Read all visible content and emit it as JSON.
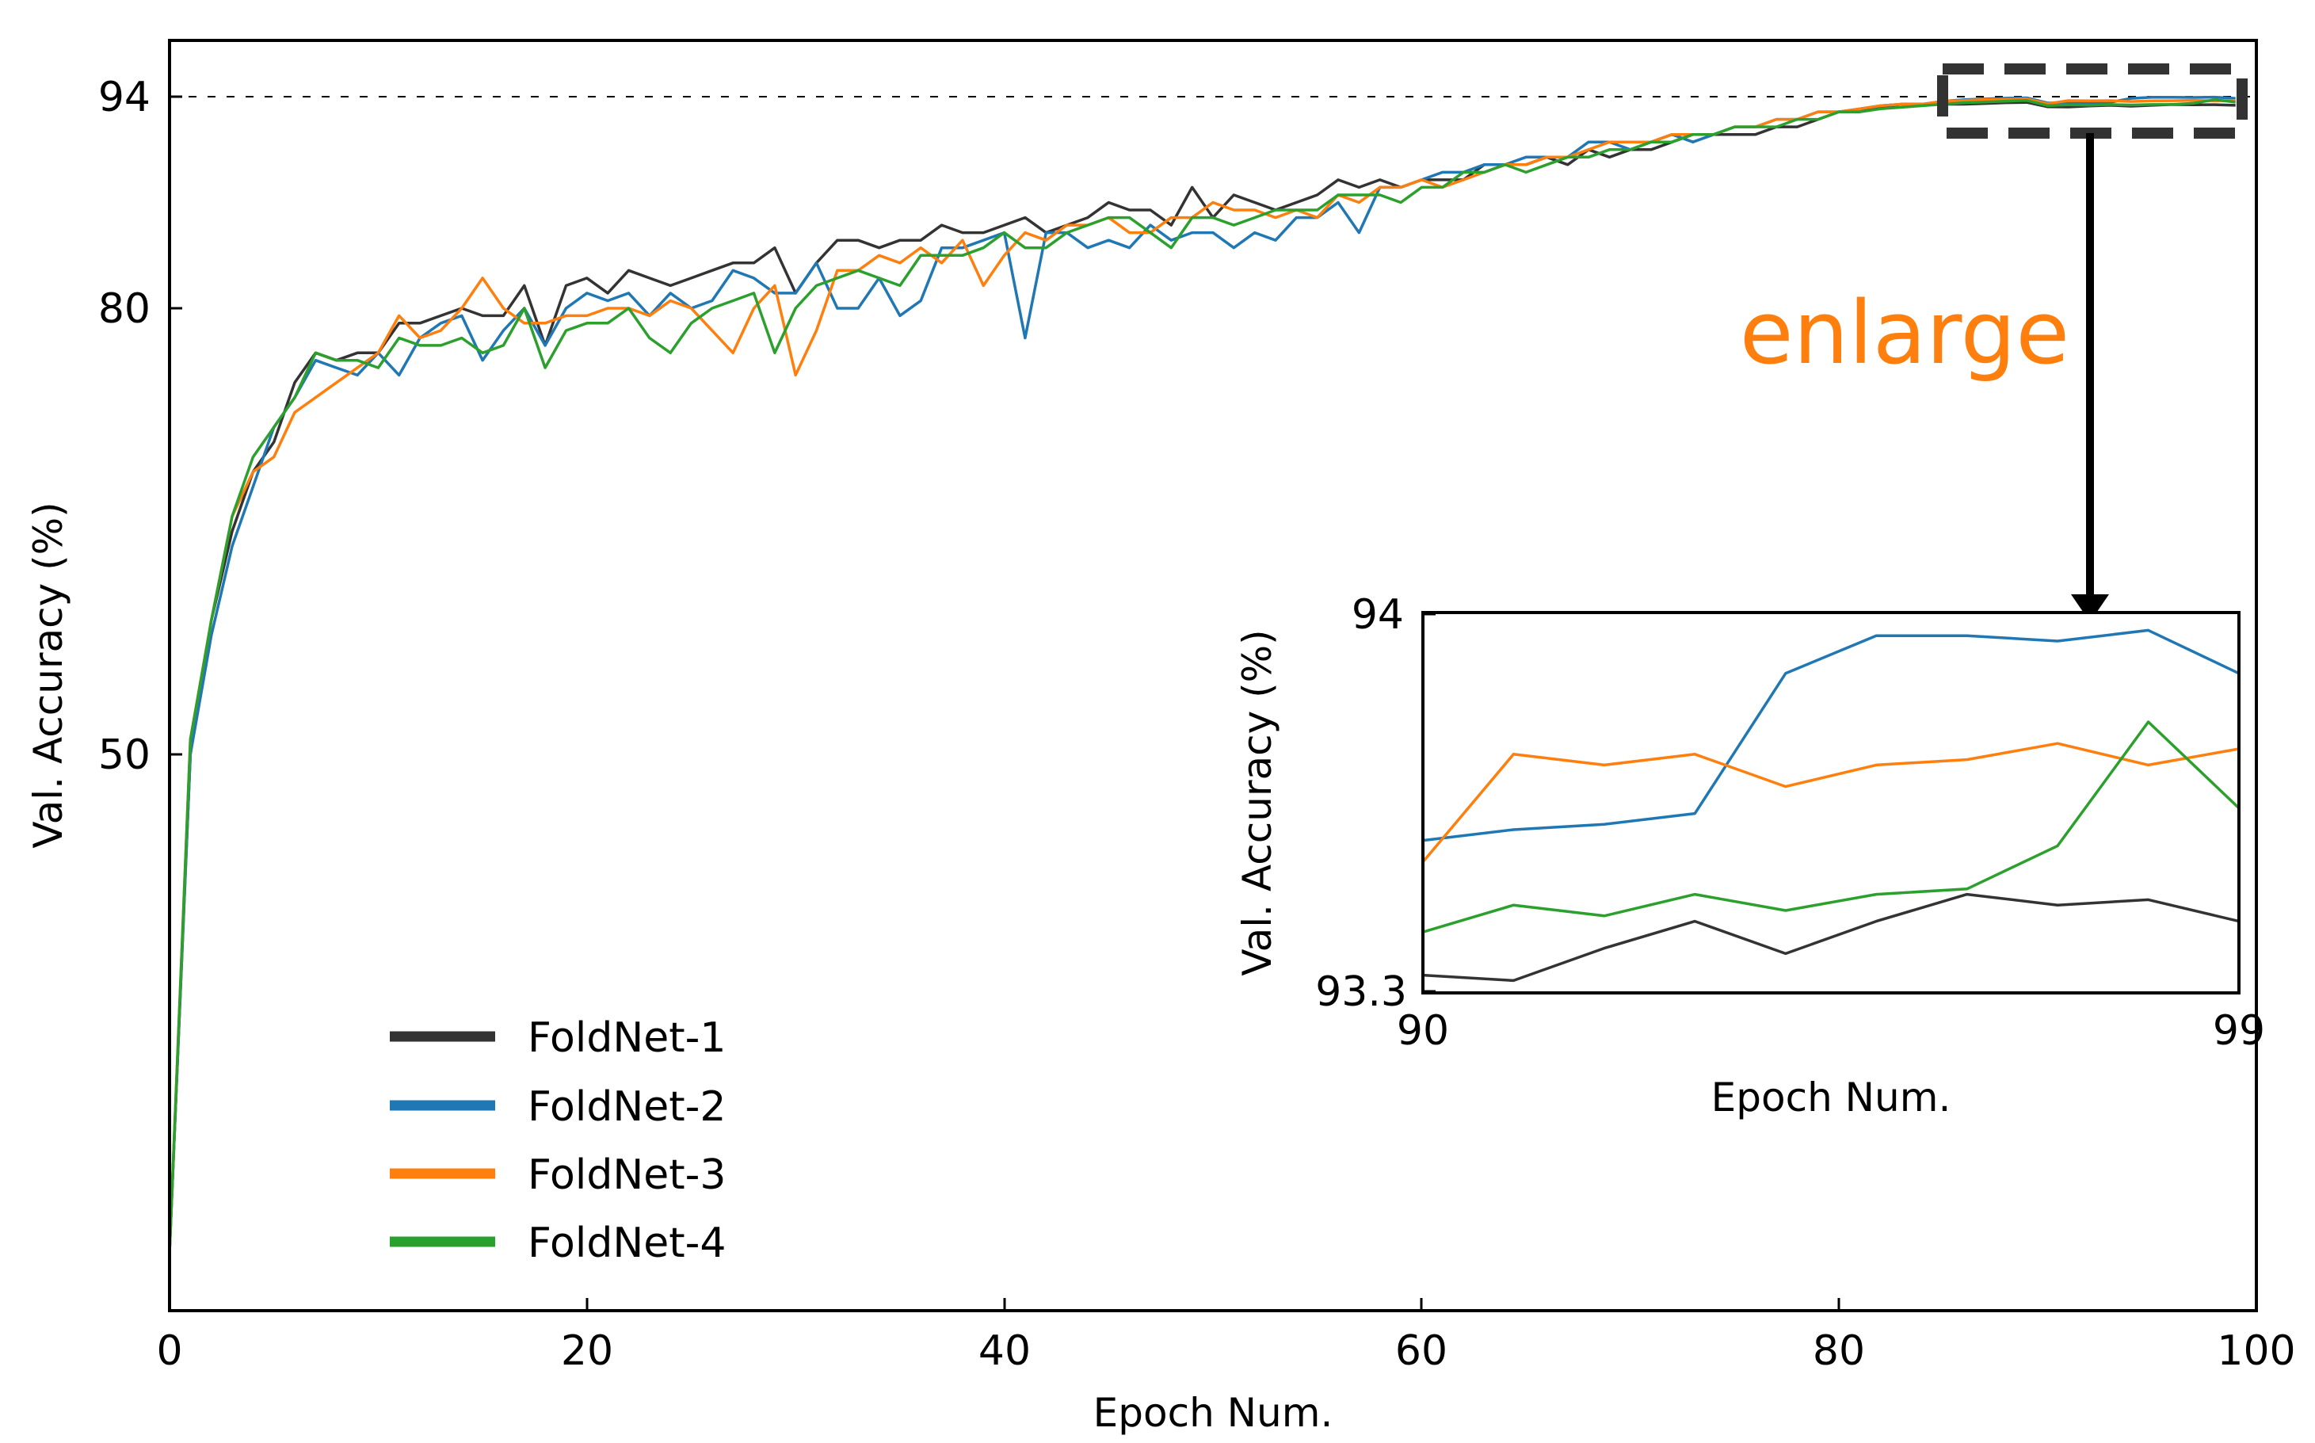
{
  "chart_data": [
    {
      "type": "line",
      "name": "main",
      "xlabel": "Epoch Num.",
      "ylabel": "Val. Accuracy (%)",
      "xlim": [
        0,
        100
      ],
      "ylim": [
        12,
        97
      ],
      "x_ticks": [
        0,
        20,
        40,
        60,
        80,
        100
      ],
      "y_ticks": [
        50,
        80,
        94
      ],
      "reference_line": {
        "y": 94,
        "style": "dashed"
      },
      "legend_position": "lower-left",
      "series": [
        {
          "name": "FoldNet-1",
          "color": "#333333",
          "x": [
            0,
            1,
            2,
            3,
            4,
            5,
            6,
            7,
            8,
            9,
            10,
            11,
            12,
            13,
            14,
            15,
            16,
            17,
            18,
            19,
            20,
            21,
            22,
            23,
            24,
            25,
            26,
            27,
            28,
            29,
            30,
            31,
            32,
            33,
            34,
            35,
            36,
            37,
            38,
            39,
            40,
            41,
            42,
            43,
            44,
            45,
            46,
            47,
            48,
            49,
            50,
            51,
            52,
            53,
            54,
            55,
            56,
            57,
            58,
            59,
            60,
            61,
            62,
            63,
            64,
            65,
            66,
            67,
            68,
            69,
            70,
            71,
            72,
            73,
            74,
            75,
            76,
            77,
            78,
            79,
            80,
            81,
            82,
            83,
            84,
            85,
            86,
            87,
            88,
            89,
            90,
            91,
            92,
            93,
            94,
            95,
            96,
            97,
            98,
            99
          ],
          "values": [
            16,
            50,
            59,
            65,
            69,
            71,
            75,
            77,
            76.5,
            77,
            77,
            79,
            79,
            79.5,
            80,
            79.5,
            79.5,
            81.5,
            77.5,
            81.5,
            82,
            81,
            82.5,
            82,
            81.5,
            82,
            82.5,
            83,
            83,
            84,
            81,
            83,
            84.5,
            84.5,
            84,
            84.5,
            84.5,
            85.5,
            85,
            85,
            85.5,
            86,
            85,
            85.5,
            86,
            87,
            86.5,
            86.5,
            85.5,
            88,
            86,
            87.5,
            87,
            86.5,
            87,
            87.5,
            88.5,
            88,
            88.5,
            88,
            88.5,
            88.5,
            88.5,
            89.5,
            89.5,
            89.5,
            90,
            89.5,
            90.5,
            90,
            90.5,
            90.5,
            91,
            91.5,
            91.5,
            91.5,
            91.5,
            92,
            92,
            92.5,
            93,
            93,
            93.3,
            93.5,
            93.5,
            93.5,
            93.5,
            93.55,
            93.6,
            93.62,
            93.33,
            93.32,
            93.38,
            93.43,
            93.37,
            93.43,
            93.48,
            93.46,
            93.47,
            93.43
          ]
        },
        {
          "name": "FoldNet-2",
          "color": "#1f77b4",
          "x": [
            0,
            1,
            2,
            3,
            4,
            5,
            6,
            7,
            8,
            9,
            10,
            11,
            12,
            13,
            14,
            15,
            16,
            17,
            18,
            19,
            20,
            21,
            22,
            23,
            24,
            25,
            26,
            27,
            28,
            29,
            30,
            31,
            32,
            33,
            34,
            35,
            36,
            37,
            38,
            39,
            40,
            41,
            42,
            43,
            44,
            45,
            46,
            47,
            48,
            49,
            50,
            51,
            52,
            53,
            54,
            55,
            56,
            57,
            58,
            59,
            60,
            61,
            62,
            63,
            64,
            65,
            66,
            67,
            68,
            69,
            70,
            71,
            72,
            73,
            74,
            75,
            76,
            77,
            78,
            79,
            80,
            81,
            82,
            83,
            84,
            85,
            86,
            87,
            88,
            89,
            90,
            91,
            92,
            93,
            94,
            95,
            96,
            97,
            98,
            99
          ],
          "values": [
            16,
            50,
            58,
            64,
            68,
            72,
            74,
            76.5,
            76,
            75.5,
            77,
            75.5,
            78,
            79,
            79.5,
            76.5,
            78.5,
            80,
            77.5,
            80,
            81,
            80.5,
            81,
            79.5,
            81,
            80,
            80.5,
            82.5,
            82,
            81,
            81,
            83,
            80,
            80,
            82,
            79.5,
            80.5,
            84,
            84,
            84.5,
            85,
            78,
            85,
            85,
            84,
            84.5,
            84,
            85.5,
            84.5,
            85,
            85,
            84,
            85,
            84.5,
            86,
            86,
            87,
            85,
            88,
            88,
            88.5,
            89,
            89,
            89.5,
            89.5,
            90,
            90,
            90,
            91,
            91,
            90.5,
            91,
            91.5,
            91,
            91.5,
            92,
            92,
            92.5,
            92.5,
            93,
            93,
            93.2,
            93.4,
            93.5,
            93.5,
            93.7,
            93.8,
            93.85,
            93.9,
            93.92,
            93.58,
            93.6,
            93.61,
            93.63,
            93.89,
            93.96,
            93.96,
            93.95,
            93.97,
            93.89
          ]
        },
        {
          "name": "FoldNet-3",
          "color": "#ff7f0e",
          "x": [
            0,
            1,
            2,
            3,
            4,
            5,
            6,
            7,
            8,
            9,
            10,
            11,
            12,
            13,
            14,
            15,
            16,
            17,
            18,
            19,
            20,
            21,
            22,
            23,
            24,
            25,
            26,
            27,
            28,
            29,
            30,
            31,
            32,
            33,
            34,
            35,
            36,
            37,
            38,
            39,
            40,
            41,
            42,
            43,
            44,
            45,
            46,
            47,
            48,
            49,
            50,
            51,
            52,
            53,
            54,
            55,
            56,
            57,
            58,
            59,
            60,
            61,
            62,
            63,
            64,
            65,
            66,
            67,
            68,
            69,
            70,
            71,
            72,
            73,
            74,
            75,
            76,
            77,
            78,
            79,
            80,
            81,
            82,
            83,
            84,
            85,
            86,
            87,
            88,
            89,
            90,
            91,
            92,
            93,
            94,
            95,
            96,
            97,
            98,
            99
          ],
          "values": [
            16,
            51,
            59,
            66,
            69,
            70,
            73,
            74,
            75,
            76,
            77,
            79.5,
            78,
            78.5,
            80,
            82,
            80,
            79,
            79,
            79.5,
            79.5,
            80,
            80,
            79.5,
            80.5,
            80,
            78.5,
            77,
            80,
            81.5,
            75.5,
            78.5,
            82.5,
            82.5,
            83.5,
            83,
            84,
            83,
            84.5,
            81.5,
            83.5,
            85,
            84.5,
            85.5,
            85.5,
            86,
            85,
            85,
            86,
            86,
            87,
            86.5,
            86.5,
            86,
            86.5,
            86,
            87.5,
            87,
            88,
            88,
            88.5,
            88,
            88.5,
            89,
            89.5,
            89.5,
            90,
            90,
            90.5,
            91,
            91,
            91,
            91.5,
            91.5,
            91.5,
            92,
            92,
            92.5,
            92.5,
            93,
            93,
            93.2,
            93.4,
            93.5,
            93.5,
            93.7,
            93.75,
            93.8,
            93.82,
            93.85,
            93.54,
            93.74,
            93.72,
            93.74,
            93.68,
            93.72,
            93.73,
            93.76,
            93.72,
            93.75
          ]
        },
        {
          "name": "FoldNet-4",
          "color": "#2ca02c",
          "x": [
            0,
            1,
            2,
            3,
            4,
            5,
            6,
            7,
            8,
            9,
            10,
            11,
            12,
            13,
            14,
            15,
            16,
            17,
            18,
            19,
            20,
            21,
            22,
            23,
            24,
            25,
            26,
            27,
            28,
            29,
            30,
            31,
            32,
            33,
            34,
            35,
            36,
            37,
            38,
            39,
            40,
            41,
            42,
            43,
            44,
            45,
            46,
            47,
            48,
            49,
            50,
            51,
            52,
            53,
            54,
            55,
            56,
            57,
            58,
            59,
            60,
            61,
            62,
            63,
            64,
            65,
            66,
            67,
            68,
            69,
            70,
            71,
            72,
            73,
            74,
            75,
            76,
            77,
            78,
            79,
            80,
            81,
            82,
            83,
            84,
            85,
            86,
            87,
            88,
            89,
            90,
            91,
            92,
            93,
            94,
            95,
            96,
            97,
            98,
            99
          ],
          "values": [
            16,
            51,
            59,
            66,
            70,
            72,
            74,
            77,
            76.5,
            76.5,
            76,
            78,
            77.5,
            77.5,
            78,
            77,
            77.5,
            80,
            76,
            78.5,
            79,
            79,
            80,
            78,
            77,
            79,
            80,
            80.5,
            81,
            77,
            80,
            81.5,
            82,
            82.5,
            82,
            81.5,
            83.5,
            83.5,
            83.5,
            84,
            85,
            84,
            84,
            85,
            85.5,
            86,
            86,
            85,
            84,
            86,
            86,
            85.5,
            86,
            86.5,
            86.5,
            86.5,
            87.5,
            87.5,
            87.5,
            87,
            88,
            88,
            89,
            89,
            89.5,
            89,
            89.5,
            90,
            90,
            90.5,
            90.5,
            91,
            91,
            91.5,
            91.5,
            92,
            92,
            92,
            92.5,
            92.5,
            93,
            93,
            93.2,
            93.3,
            93.4,
            93.5,
            93.6,
            93.65,
            93.7,
            93.75,
            93.41,
            93.46,
            93.44,
            93.48,
            93.45,
            93.48,
            93.49,
            93.57,
            93.8,
            93.64
          ]
        }
      ]
    },
    {
      "type": "line",
      "name": "inset",
      "xlabel": "Epoch Num.",
      "ylabel": "Val. Accuracy (%)",
      "xlim": [
        90,
        99
      ],
      "ylim": [
        93.3,
        94
      ],
      "x_ticks": [
        90,
        99
      ],
      "y_ticks": [
        93.3,
        94
      ],
      "annotation": "enlarge"
    }
  ],
  "labels": {
    "y_tick_94": "94",
    "y_tick_80": "80",
    "y_tick_50": "50",
    "x_tick_0": "0",
    "x_tick_20": "20",
    "x_tick_40": "40",
    "x_tick_60": "60",
    "x_tick_80": "80",
    "x_tick_100": "100",
    "main_xlabel": "Epoch Num.",
    "main_ylabel": "Val. Accuracy (%)",
    "legend_1": "FoldNet-1",
    "legend_2": "FoldNet-2",
    "legend_3": "FoldNet-3",
    "legend_4": "FoldNet-4",
    "inset_y_top": "94",
    "inset_y_bottom": "93.3",
    "inset_x_left": "90",
    "inset_x_right": "99",
    "inset_xlabel": "Epoch Num.",
    "inset_ylabel": "Val. Accuracy (%)",
    "enlarge": "enlarge",
    "enlarge_color": "#ff7f0e"
  }
}
